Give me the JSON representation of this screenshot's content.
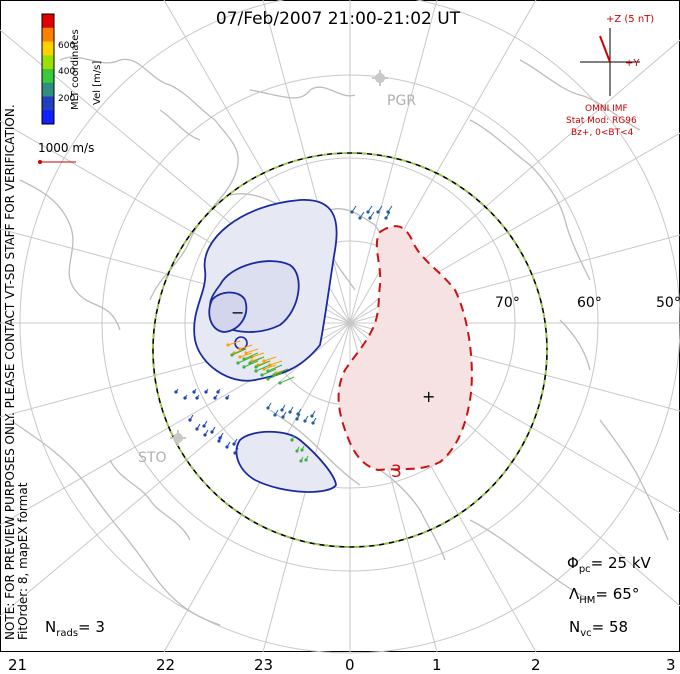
{
  "title": "07/Feb/2007 21:00-21:02 UT",
  "side_note": {
    "line1": "NOTE: FOR PREVIEW PURPOSES ONLY. PLEASE CONTACT VT-SD STAFF FOR VERIFICATION.",
    "line2": "FitOrder: 8, mapEX format"
  },
  "colorbar": {
    "label": "Vel [m/s]",
    "coord_label": "MLT coordinates",
    "ticks": [
      "600",
      "400",
      "200"
    ],
    "colors": [
      "#e00000",
      "#ff7f00",
      "#ffd000",
      "#9be000",
      "#3cc83c",
      "#2f8f7f",
      "#2040c0",
      "#1020ff"
    ]
  },
  "reference_vector": {
    "label": "1000 m/s"
  },
  "imf": {
    "z_label": "+Z (5 nT)",
    "y_label": "+Y",
    "source": "OMNI IMF",
    "model": "Stat Mod: RG96",
    "condition": "Bz+, 0<BT<4"
  },
  "stations": [
    {
      "name": "PGR"
    },
    {
      "name": "STO"
    }
  ],
  "latitude_labels": [
    "70°",
    "60°",
    "50°"
  ],
  "mlt_labels": [
    "21",
    "22",
    "23",
    "0",
    "1",
    "2",
    "3"
  ],
  "potential_markers": {
    "min": "−",
    "max": "+"
  },
  "contour_label": "3",
  "stats": {
    "phi_pc": {
      "symbol": "Φ",
      "sub": "pc",
      "value": "= 25 kV"
    },
    "lambda_hm": {
      "symbol": "Λ",
      "sub": "HM",
      "value": "= 65°"
    },
    "n_vc": {
      "symbol": "N",
      "sub": "vc",
      "value": "= 58"
    },
    "n_rads": {
      "symbol": "N",
      "sub": "rads",
      "value": "= 3"
    }
  },
  "colors": {
    "negative_cell": "#1a2aa0",
    "negative_fill": "#e6e8f4",
    "positive_cell": "#cc1111",
    "positive_fill": "#f6e2e2",
    "grid": "#c8c8c8",
    "coast": "#bdbdbd",
    "hmb_dash": "#9ad040"
  }
}
